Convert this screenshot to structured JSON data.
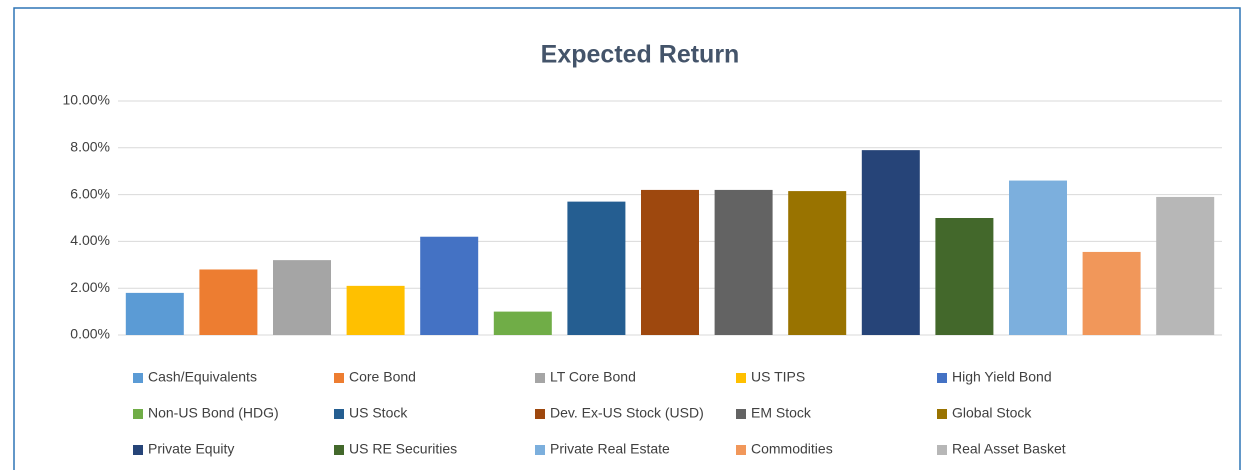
{
  "chart_data": {
    "type": "bar",
    "title": "Expected Return",
    "categories": [
      "Cash/Equivalents",
      "Core Bond",
      "LT Core Bond",
      "US TIPS",
      "High Yield Bond",
      "Non-US Bond (HDG)",
      "US Stock",
      "Dev. Ex-US Stock (USD)",
      "EM Stock",
      "Global Stock",
      "Private Equity",
      "US RE Securities",
      "Private Real Estate",
      "Commodities",
      "Real Asset Basket"
    ],
    "values": [
      1.8,
      2.8,
      3.2,
      2.1,
      4.2,
      1.0,
      5.7,
      6.2,
      6.2,
      6.15,
      7.9,
      5.0,
      6.6,
      3.55,
      5.9
    ],
    "colors": [
      "#5b9bd5",
      "#ed7d31",
      "#a5a5a5",
      "#ffc000",
      "#4472c4",
      "#70ad47",
      "#255e91",
      "#9e480e",
      "#636363",
      "#997300",
      "#264478",
      "#43682b",
      "#7cafdd",
      "#f1975a",
      "#b7b7b7"
    ],
    "ylim": [
      0,
      10
    ],
    "yticks": [
      {
        "value": 0,
        "label": "0.00%"
      },
      {
        "value": 2,
        "label": "2.00%"
      },
      {
        "value": 4,
        "label": "4.00%"
      },
      {
        "value": 6,
        "label": "6.00%"
      },
      {
        "value": 8,
        "label": "8.00%"
      },
      {
        "value": 10,
        "label": "10.00%"
      }
    ],
    "grid": true
  }
}
